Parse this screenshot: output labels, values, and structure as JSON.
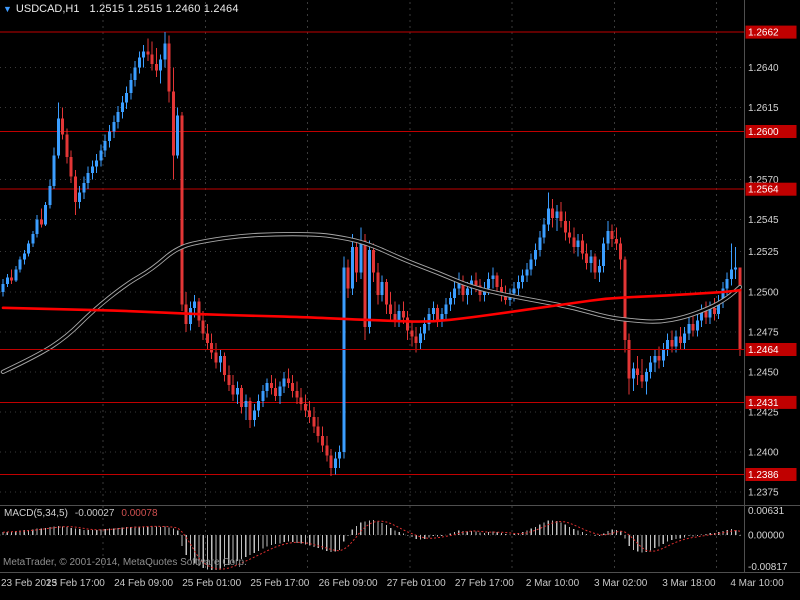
{
  "title": {
    "symbol": "USDCAD,H1",
    "ohlc": "1.2515 1.2515 1.2460 1.2464",
    "marker_icon": "▼"
  },
  "copyright": "MetaTrader, © 2001-2014, MetaQuotes Software Corp.",
  "colors": {
    "background": "#000000",
    "bull": "#3B9EFF",
    "bear": "#E33636",
    "ma_slow": "#000000",
    "ma_slow_halo": "#A8A8A8",
    "ma_fast": "#FF0000",
    "level": "#C00000",
    "badge": "#C00000",
    "badge_text": "#FFFFFF",
    "grid": "#3A3A3A",
    "separator": "#4F4F4F",
    "axis_text": "#D4D4D4",
    "time_text": "#C8C8C8",
    "macd_histogram": "#BFBFBF",
    "macd_signal": "#E03030"
  },
  "chart_data": {
    "type": "candlestick",
    "symbol": "USDCAD",
    "timeframe": "H1",
    "price_base": 1.2,
    "pip": 0.0001,
    "axis_top": 1.2682,
    "axis_bottom": 1.2367,
    "current_price": 1.2464,
    "levels": [
      1.2662,
      1.26,
      1.2564,
      1.2431,
      1.2386
    ],
    "y_ticks": [
      1.264,
      1.2615,
      1.257,
      1.2545,
      1.2525,
      1.25,
      1.2475,
      1.245,
      1.2425,
      1.24,
      1.2375
    ],
    "day_separators": [
      24,
      48,
      72,
      96,
      120,
      144,
      168
    ],
    "time_labels": [
      [
        0,
        "23 Feb 2015"
      ],
      [
        17,
        "23 Feb 17:00"
      ],
      [
        33,
        "24 Feb 09:00"
      ],
      [
        49,
        "25 Feb 01:00"
      ],
      [
        65,
        "25 Feb 17:00"
      ],
      [
        81,
        "26 Feb 09:00"
      ],
      [
        97,
        "27 Feb 01:00"
      ],
      [
        113,
        "27 Feb 17:00"
      ],
      [
        129,
        "2 Mar 10:00"
      ],
      [
        145,
        "3 Mar 02:00"
      ],
      [
        161,
        "3 Mar 18:00"
      ],
      [
        177,
        "4 Mar 10:00"
      ]
    ],
    "candles": [
      [
        500,
        508,
        497,
        505
      ],
      [
        505,
        511,
        503,
        509
      ],
      [
        509,
        514,
        505,
        507
      ],
      [
        507,
        516,
        506,
        514
      ],
      [
        514,
        522,
        512,
        520
      ],
      [
        520,
        526,
        517,
        524
      ],
      [
        524,
        532,
        522,
        530
      ],
      [
        530,
        538,
        528,
        536
      ],
      [
        536,
        548,
        534,
        545
      ],
      [
        545,
        552,
        540,
        542
      ],
      [
        542,
        556,
        541,
        554
      ],
      [
        554,
        570,
        552,
        566
      ],
      [
        566,
        590,
        564,
        585
      ],
      [
        585,
        618,
        583,
        608
      ],
      [
        608,
        615,
        595,
        598
      ],
      [
        598,
        602,
        580,
        584
      ],
      [
        584,
        588,
        568,
        572
      ],
      [
        572,
        576,
        548,
        556
      ],
      [
        556,
        566,
        552,
        562
      ],
      [
        562,
        572,
        558,
        568
      ],
      [
        568,
        578,
        564,
        574
      ],
      [
        574,
        582,
        570,
        578
      ],
      [
        578,
        586,
        574,
        582
      ],
      [
        582,
        592,
        578,
        588
      ],
      [
        588,
        598,
        584,
        594
      ],
      [
        594,
        604,
        590,
        600
      ],
      [
        600,
        610,
        596,
        606
      ],
      [
        606,
        616,
        602,
        612
      ],
      [
        612,
        622,
        608,
        618
      ],
      [
        618,
        628,
        614,
        624
      ],
      [
        624,
        636,
        620,
        632
      ],
      [
        632,
        644,
        628,
        640
      ],
      [
        640,
        650,
        636,
        646
      ],
      [
        646,
        654,
        640,
        650
      ],
      [
        650,
        658,
        644,
        648
      ],
      [
        648,
        656,
        638,
        642
      ],
      [
        642,
        652,
        634,
        638
      ],
      [
        638,
        648,
        630,
        645
      ],
      [
        645,
        662,
        640,
        655
      ],
      [
        655,
        660,
        618,
        625
      ],
      [
        625,
        640,
        570,
        585
      ],
      [
        585,
        615,
        583,
        610
      ],
      [
        610,
        612,
        488,
        492
      ],
      [
        492,
        500,
        475,
        480
      ],
      [
        480,
        494,
        476,
        490
      ],
      [
        490,
        498,
        484,
        494
      ],
      [
        494,
        496,
        478,
        482
      ],
      [
        482,
        488,
        470,
        474
      ],
      [
        474,
        480,
        464,
        468
      ],
      [
        468,
        474,
        458,
        462
      ],
      [
        462,
        468,
        452,
        456
      ],
      [
        456,
        464,
        450,
        460
      ],
      [
        460,
        462,
        444,
        448
      ],
      [
        448,
        454,
        438,
        442
      ],
      [
        442,
        448,
        432,
        436
      ],
      [
        436,
        444,
        430,
        440
      ],
      [
        440,
        442,
        424,
        428
      ],
      [
        428,
        436,
        420,
        432
      ],
      [
        432,
        434,
        415,
        420
      ],
      [
        420,
        430,
        416,
        426
      ],
      [
        426,
        436,
        422,
        432
      ],
      [
        432,
        442,
        428,
        438
      ],
      [
        438,
        446,
        434,
        443
      ],
      [
        443,
        448,
        436,
        440
      ],
      [
        440,
        446,
        432,
        435
      ],
      [
        435,
        444,
        430,
        441
      ],
      [
        441,
        450,
        437,
        446
      ],
      [
        446,
        452,
        440,
        443
      ],
      [
        443,
        448,
        434,
        438
      ],
      [
        438,
        444,
        430,
        434
      ],
      [
        434,
        440,
        426,
        430
      ],
      [
        430,
        436,
        422,
        426
      ],
      [
        426,
        432,
        418,
        422
      ],
      [
        422,
        428,
        412,
        416
      ],
      [
        416,
        422,
        406,
        410
      ],
      [
        410,
        416,
        400,
        404
      ],
      [
        404,
        410,
        394,
        398
      ],
      [
        398,
        402,
        385,
        390
      ],
      [
        390,
        400,
        386,
        396
      ],
      [
        396,
        404,
        390,
        400
      ],
      [
        400,
        522,
        396,
        515
      ],
      [
        515,
        520,
        496,
        502
      ],
      [
        502,
        536,
        498,
        528
      ],
      [
        528,
        532,
        506,
        512
      ],
      [
        512,
        540,
        508,
        532
      ],
      [
        532,
        536,
        470,
        478
      ],
      [
        478,
        532,
        474,
        526
      ],
      [
        526,
        530,
        506,
        512
      ],
      [
        512,
        518,
        492,
        498
      ],
      [
        498,
        510,
        494,
        506
      ],
      [
        506,
        508,
        486,
        492
      ],
      [
        492,
        500,
        482,
        486
      ],
      [
        486,
        494,
        478,
        482
      ],
      [
        482,
        492,
        478,
        488
      ],
      [
        488,
        494,
        480,
        484
      ],
      [
        484,
        488,
        470,
        476
      ],
      [
        476,
        482,
        466,
        472
      ],
      [
        472,
        478,
        462,
        468
      ],
      [
        468,
        478,
        464,
        474
      ],
      [
        474,
        484,
        470,
        480
      ],
      [
        480,
        490,
        476,
        486
      ],
      [
        486,
        494,
        482,
        490
      ],
      [
        490,
        492,
        478,
        482
      ],
      [
        482,
        490,
        478,
        486
      ],
      [
        486,
        496,
        482,
        492
      ],
      [
        492,
        500,
        488,
        496
      ],
      [
        496,
        506,
        492,
        502
      ],
      [
        502,
        512,
        498,
        506
      ],
      [
        506,
        510,
        494,
        498
      ],
      [
        498,
        506,
        492,
        502
      ],
      [
        502,
        510,
        498,
        507
      ],
      [
        507,
        512,
        500,
        504
      ],
      [
        504,
        508,
        494,
        498
      ],
      [
        498,
        506,
        494,
        502
      ],
      [
        502,
        512,
        498,
        508
      ],
      [
        508,
        515,
        502,
        510
      ],
      [
        510,
        512,
        498,
        503
      ],
      [
        503,
        508,
        494,
        498
      ],
      [
        498,
        504,
        492,
        495
      ],
      [
        495,
        502,
        491,
        499
      ],
      [
        499,
        506,
        494,
        502
      ],
      [
        502,
        510,
        498,
        506
      ],
      [
        506,
        514,
        502,
        510
      ],
      [
        510,
        518,
        506,
        514
      ],
      [
        514,
        524,
        510,
        520
      ],
      [
        520,
        530,
        516,
        526
      ],
      [
        526,
        538,
        522,
        534
      ],
      [
        534,
        546,
        530,
        542
      ],
      [
        542,
        562,
        538,
        552
      ],
      [
        552,
        558,
        540,
        546
      ],
      [
        546,
        554,
        538,
        550
      ],
      [
        550,
        556,
        540,
        544
      ],
      [
        544,
        550,
        532,
        537
      ],
      [
        537,
        544,
        530,
        534
      ],
      [
        534,
        540,
        524,
        528
      ],
      [
        528,
        536,
        522,
        532
      ],
      [
        532,
        536,
        520,
        524
      ],
      [
        524,
        530,
        514,
        518
      ],
      [
        518,
        526,
        512,
        522
      ],
      [
        522,
        524,
        508,
        512
      ],
      [
        512,
        520,
        506,
        516
      ],
      [
        516,
        534,
        512,
        530
      ],
      [
        530,
        544,
        526,
        538
      ],
      [
        538,
        542,
        528,
        533
      ],
      [
        533,
        540,
        526,
        530
      ],
      [
        530,
        534,
        514,
        520
      ],
      [
        520,
        522,
        462,
        470
      ],
      [
        470,
        474,
        436,
        446
      ],
      [
        446,
        456,
        438,
        452
      ],
      [
        452,
        460,
        442,
        448
      ],
      [
        448,
        458,
        440,
        444
      ],
      [
        444,
        452,
        436,
        450
      ],
      [
        450,
        460,
        446,
        456
      ],
      [
        456,
        464,
        450,
        460
      ],
      [
        460,
        466,
        452,
        457
      ],
      [
        457,
        468,
        453,
        464
      ],
      [
        464,
        474,
        460,
        470
      ],
      [
        470,
        476,
        462,
        466
      ],
      [
        466,
        476,
        462,
        472
      ],
      [
        472,
        478,
        464,
        468
      ],
      [
        468,
        478,
        464,
        474
      ],
      [
        474,
        484,
        470,
        480
      ],
      [
        480,
        486,
        472,
        476
      ],
      [
        476,
        486,
        472,
        482
      ],
      [
        482,
        492,
        478,
        488
      ],
      [
        488,
        494,
        480,
        484
      ],
      [
        484,
        494,
        480,
        490
      ],
      [
        490,
        496,
        482,
        486
      ],
      [
        486,
        498,
        483,
        494
      ],
      [
        494,
        506,
        490,
        502
      ],
      [
        502,
        512,
        498,
        508
      ],
      [
        508,
        530,
        504,
        514
      ],
      [
        514,
        528,
        508,
        515
      ],
      [
        515,
        515,
        460,
        464
      ]
    ],
    "ma_slow_points": [
      [
        0,
        450
      ],
      [
        8,
        460
      ],
      [
        15,
        472
      ],
      [
        21,
        488
      ],
      [
        29,
        505
      ],
      [
        35,
        514
      ],
      [
        41,
        528
      ],
      [
        48,
        532
      ],
      [
        56,
        535
      ],
      [
        64,
        536
      ],
      [
        72,
        536
      ],
      [
        77,
        535
      ],
      [
        85,
        531
      ],
      [
        94,
        520
      ],
      [
        102,
        512
      ],
      [
        110,
        503
      ],
      [
        118,
        498
      ],
      [
        126,
        494
      ],
      [
        134,
        490
      ],
      [
        142,
        484
      ],
      [
        148,
        482
      ],
      [
        154,
        481
      ],
      [
        160,
        484
      ],
      [
        166,
        490
      ],
      [
        170,
        496
      ],
      [
        173,
        503
      ]
    ],
    "ma_fast_points": [
      [
        0,
        490
      ],
      [
        15,
        489
      ],
      [
        30,
        488
      ],
      [
        45,
        486
      ],
      [
        60,
        485
      ],
      [
        72,
        484
      ],
      [
        80,
        483
      ],
      [
        90,
        482
      ],
      [
        100,
        481
      ],
      [
        110,
        484
      ],
      [
        118,
        487
      ],
      [
        126,
        490
      ],
      [
        134,
        493
      ],
      [
        142,
        496
      ],
      [
        150,
        497
      ],
      [
        158,
        498
      ],
      [
        164,
        499
      ],
      [
        170,
        500
      ],
      [
        173,
        501
      ]
    ],
    "macd": {
      "label": "MACD(5,34,5)",
      "value": "-0.00027",
      "signal_value": "0.00078",
      "axis_max": 0.00631,
      "axis_min": -0.00817,
      "axis_labels": [
        "0.00631",
        "0.00000",
        "-0.00817"
      ],
      "scale": 1e-05,
      "histogram": [
        60,
        70,
        80,
        85,
        95,
        105,
        115,
        125,
        140,
        150,
        160,
        175,
        190,
        200,
        195,
        180,
        160,
        150,
        130,
        115,
        105,
        110,
        115,
        120,
        130,
        140,
        150,
        160,
        168,
        175,
        180,
        185,
        188,
        190,
        195,
        200,
        190,
        180,
        185,
        170,
        150,
        100,
        -250,
        -450,
        -580,
        -650,
        -700,
        -750,
        -780,
        -800,
        -790,
        -760,
        -720,
        -680,
        -640,
        -590,
        -550,
        -500,
        -460,
        -410,
        -360,
        -310,
        -260,
        -230,
        -210,
        -190,
        -160,
        -150,
        -160,
        -180,
        -200,
        -220,
        -240,
        -270,
        -300,
        -330,
        -360,
        -390,
        -380,
        -340,
        -150,
        -20,
        120,
        200,
        280,
        300,
        330,
        340,
        300,
        270,
        220,
        160,
        100,
        60,
        30,
        -10,
        -50,
        -90,
        -100,
        -90,
        -60,
        -30,
        -40,
        -30,
        0,
        30,
        70,
        100,
        90,
        80,
        90,
        80,
        50,
        40,
        60,
        80,
        70,
        40,
        20,
        10,
        20,
        40,
        70,
        100,
        140,
        180,
        230,
        280,
        330,
        320,
        310,
        280,
        230,
        180,
        130,
        100,
        60,
        20,
        0,
        -30,
        -20,
        30,
        90,
        120,
        110,
        80,
        -80,
        -250,
        -340,
        -380,
        -400,
        -390,
        -350,
        -300,
        -260,
        -210,
        -150,
        -120,
        -90,
        -80,
        -60,
        -30,
        -40,
        -20,
        10,
        20,
        40,
        40,
        60,
        90,
        110,
        130,
        110,
        -27
      ]
    }
  }
}
